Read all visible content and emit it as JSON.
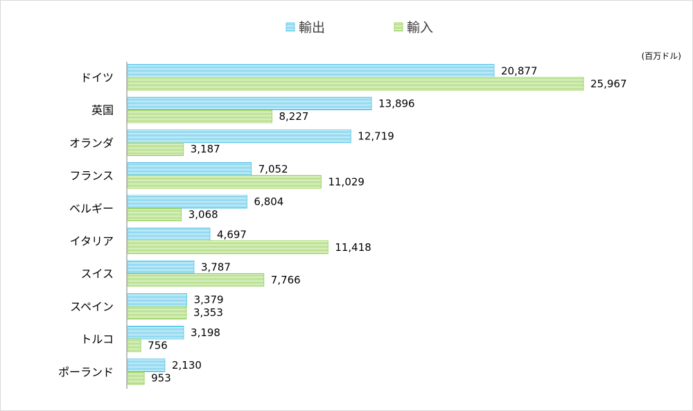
{
  "chart_data": {
    "type": "bar",
    "orientation": "horizontal",
    "unit": "(百万ドル)",
    "categories": [
      "ドイツ",
      "英国",
      "オランダ",
      "フランス",
      "ベルギー",
      "イタリア",
      "スイス",
      "スペイン",
      "トルコ",
      "ポーランド"
    ],
    "series": [
      {
        "name": "輸出",
        "color": "#4fc3e8",
        "values": [
          20877,
          13896,
          12719,
          7052,
          6804,
          4697,
          3787,
          3379,
          3198,
          2130
        ],
        "labels": [
          "20,877",
          "13,896",
          "12,719",
          "7,052",
          "6,804",
          "4,697",
          "3,787",
          "3,379",
          "3,198",
          "2,130"
        ]
      },
      {
        "name": "輸入",
        "color": "#92d050",
        "values": [
          25967,
          8227,
          3187,
          11029,
          3068,
          11418,
          7766,
          3353,
          756,
          953
        ],
        "labels": [
          "25,967",
          "8,227",
          "3,187",
          "11,029",
          "3,068",
          "11,418",
          "7,766",
          "3,353",
          "756",
          "953"
        ]
      }
    ],
    "xlim": [
      0,
      32000
    ],
    "grid": false,
    "legend_position": "top",
    "xaxis_visible": false
  }
}
